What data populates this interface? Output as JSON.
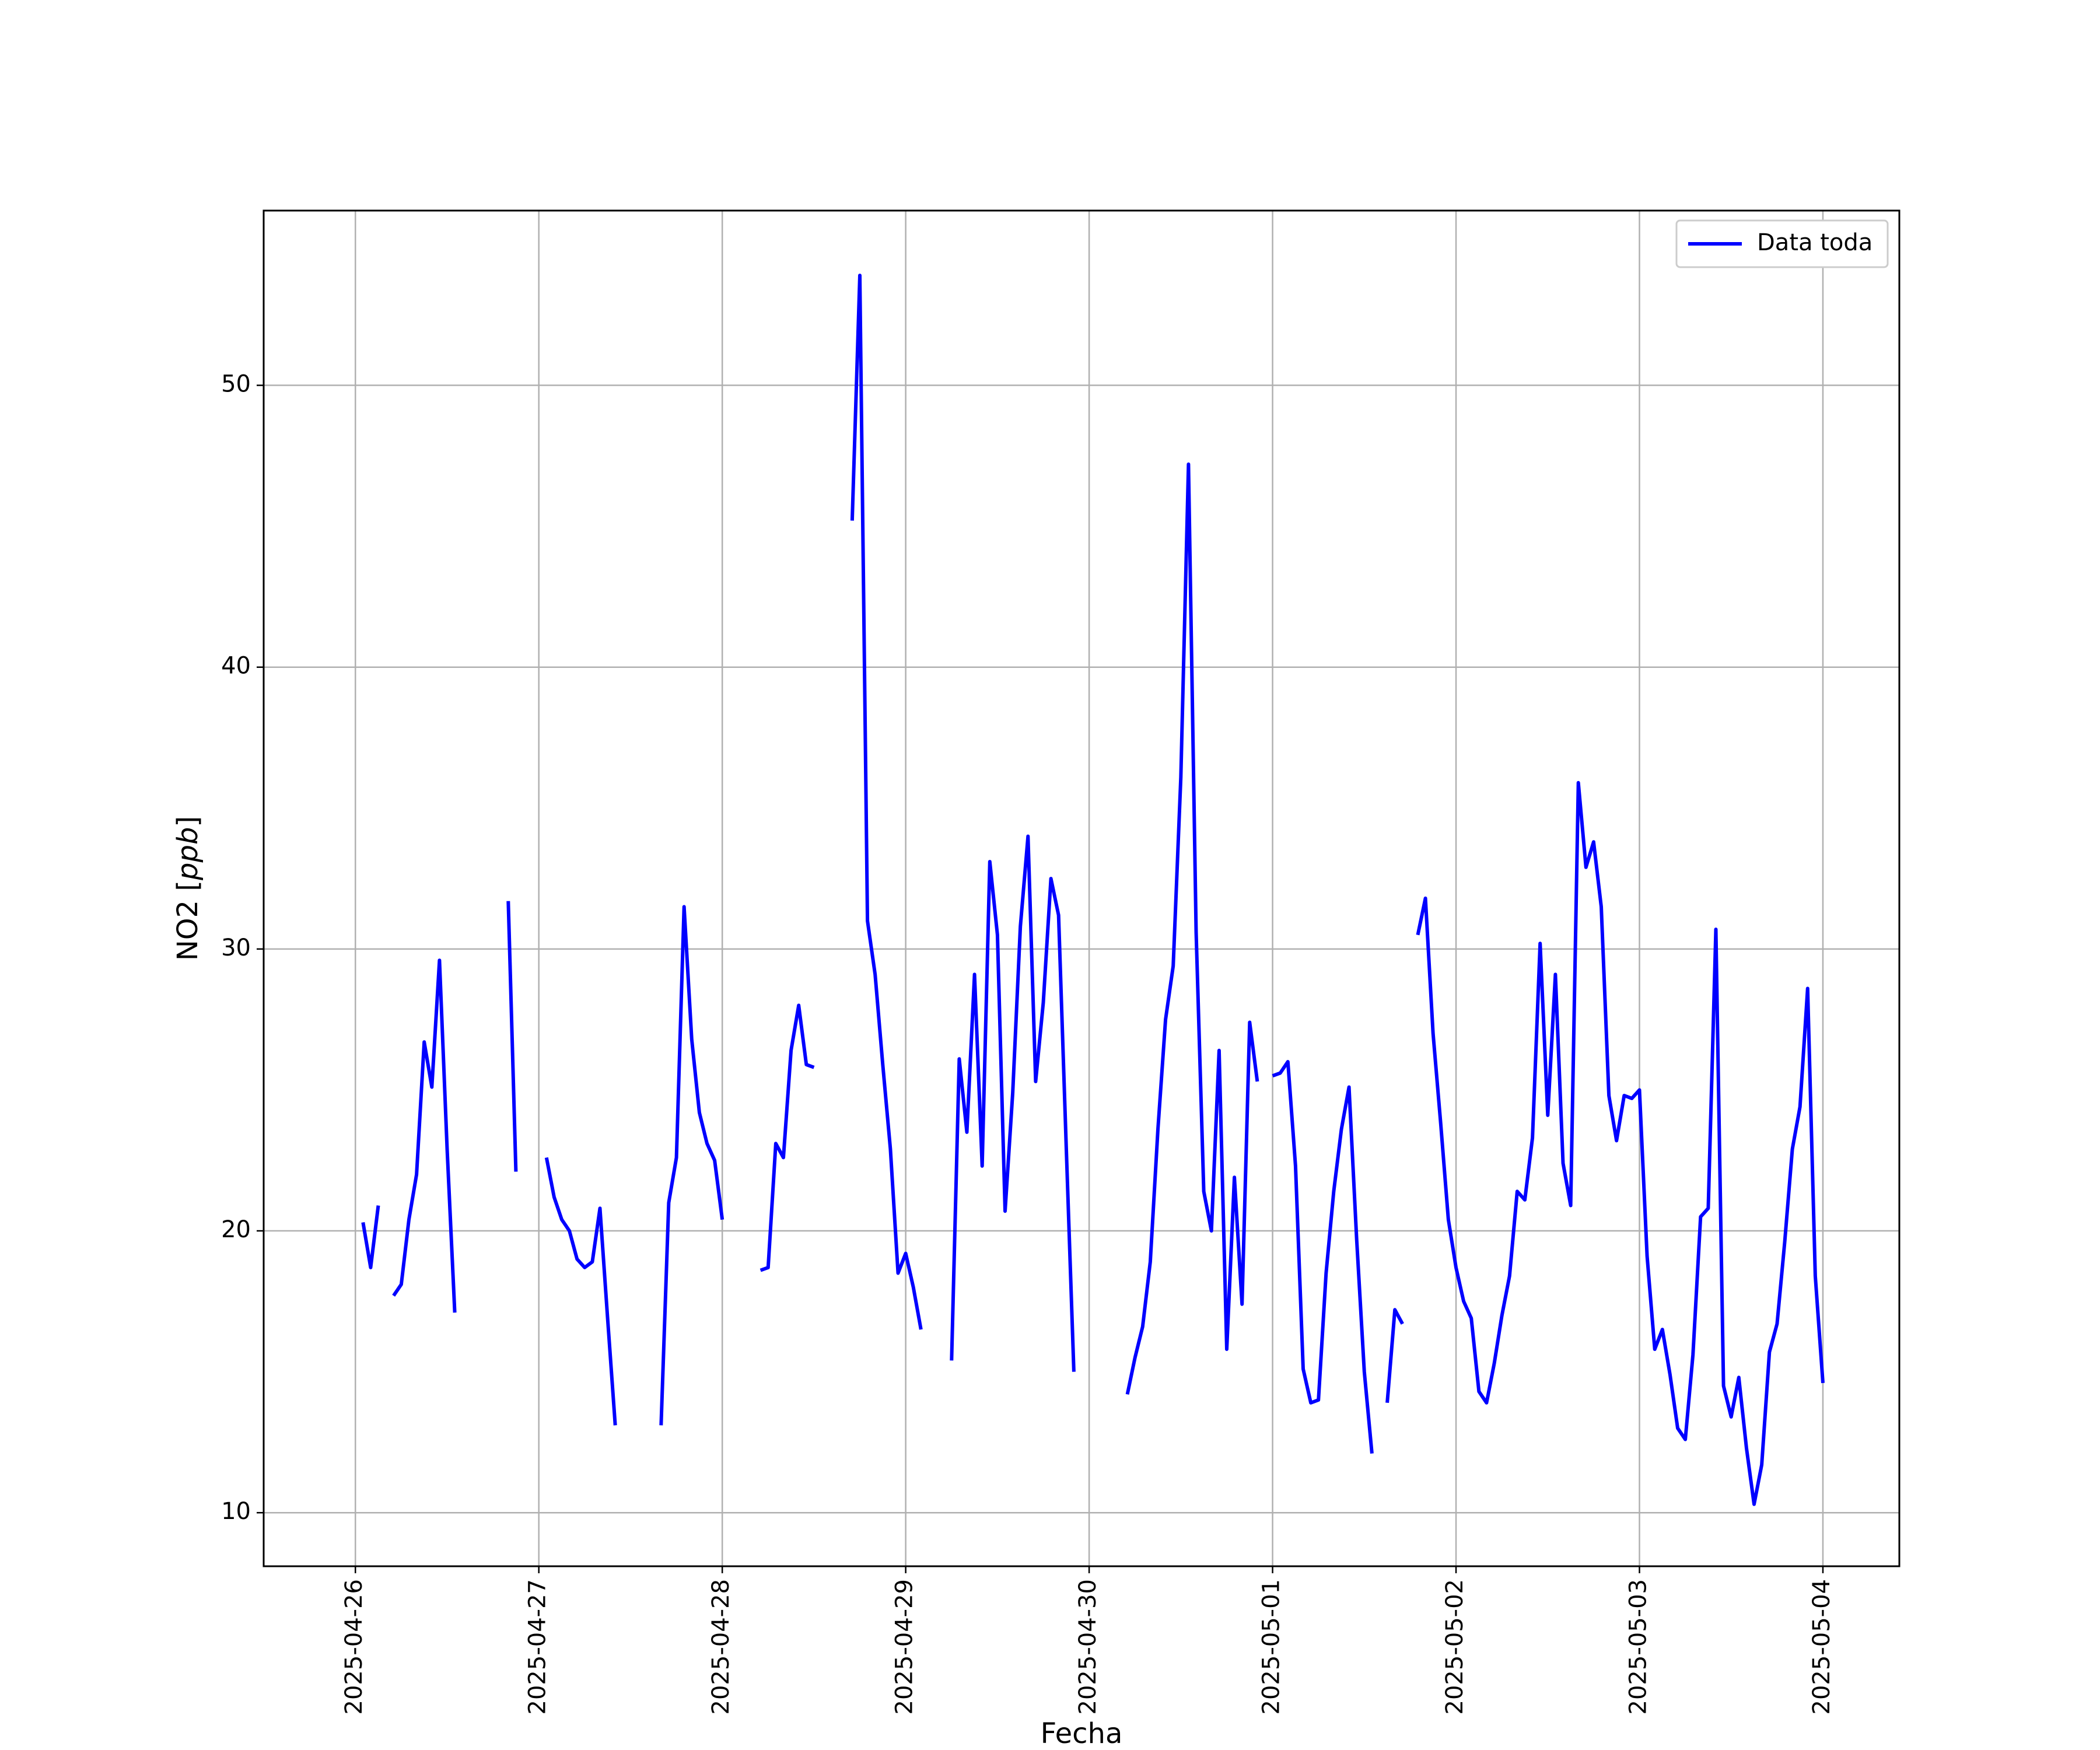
{
  "chart_data": {
    "type": "line",
    "title": "",
    "xlabel": "Fecha",
    "ylabel": "NO2 [ppb]",
    "ylabel_parts": {
      "base": "NO2 [",
      "unit": "ppb",
      "close": "]"
    },
    "xlim": [
      "2025-04-25 12:00",
      "2025-05-04 10:00"
    ],
    "ylim": [
      8.1,
      56.2
    ],
    "x_ticks": [
      "2025-04-26",
      "2025-04-27",
      "2025-04-28",
      "2025-04-29",
      "2025-04-30",
      "2025-05-01",
      "2025-05-02",
      "2025-05-03",
      "2025-05-04"
    ],
    "y_ticks": [
      10,
      20,
      30,
      40,
      50
    ],
    "grid": true,
    "legend": {
      "placement": "top-right",
      "entries": [
        "Data toda"
      ]
    },
    "series": [
      {
        "name": "Data toda",
        "color": "#0000ff",
        "segments": [
          [
            [
              "2025-04-26 01:00",
              20.3
            ],
            [
              "2025-04-26 02:00",
              18.7
            ],
            [
              "2025-04-26 03:00",
              20.9
            ]
          ],
          [
            [
              "2025-04-26 05:00",
              17.7
            ],
            [
              "2025-04-26 06:00",
              18.1
            ],
            [
              "2025-04-26 07:00",
              20.4
            ],
            [
              "2025-04-26 08:00",
              22.0
            ],
            [
              "2025-04-26 09:00",
              26.7
            ],
            [
              "2025-04-26 10:00",
              25.1
            ],
            [
              "2025-04-26 11:00",
              29.6
            ],
            [
              "2025-04-26 12:00",
              22.9
            ],
            [
              "2025-04-26 13:00",
              17.1
            ]
          ],
          [
            [
              "2025-04-26 20:00",
              31.7
            ],
            [
              "2025-04-26 21:00",
              22.1
            ]
          ],
          [
            [
              "2025-04-27 01:00",
              22.6
            ],
            [
              "2025-04-27 02:00",
              21.2
            ],
            [
              "2025-04-27 03:00",
              20.4
            ],
            [
              "2025-04-27 04:00",
              20.0
            ],
            [
              "2025-04-27 05:00",
              19.0
            ],
            [
              "2025-04-27 06:00",
              18.7
            ],
            [
              "2025-04-27 07:00",
              18.9
            ],
            [
              "2025-04-27 08:00",
              20.8
            ],
            [
              "2025-04-27 09:00",
              16.9
            ],
            [
              "2025-04-27 10:00",
              13.1
            ]
          ],
          [
            [
              "2025-04-27 16:00",
              13.1
            ],
            [
              "2025-04-27 17:00",
              21.0
            ],
            [
              "2025-04-27 18:00",
              22.6
            ],
            [
              "2025-04-27 19:00",
              31.5
            ],
            [
              "2025-04-27 20:00",
              26.8
            ],
            [
              "2025-04-27 21:00",
              24.2
            ],
            [
              "2025-04-27 22:00",
              23.1
            ],
            [
              "2025-04-27 23:00",
              22.5
            ],
            [
              "2025-04-28 00:00",
              20.4
            ]
          ],
          [
            [
              "2025-04-28 05:00",
              18.6
            ],
            [
              "2025-04-28 06:00",
              18.7
            ],
            [
              "2025-04-28 07:00",
              23.1
            ],
            [
              "2025-04-28 08:00",
              22.6
            ],
            [
              "2025-04-28 09:00",
              26.4
            ],
            [
              "2025-04-28 10:00",
              28.0
            ],
            [
              "2025-04-28 11:00",
              25.9
            ],
            [
              "2025-04-28 12:00",
              25.8
            ]
          ],
          [
            [
              "2025-04-28 17:00",
              45.2
            ],
            [
              "2025-04-28 18:00",
              53.9
            ],
            [
              "2025-04-28 19:00",
              31.0
            ],
            [
              "2025-04-28 20:00",
              29.1
            ],
            [
              "2025-04-28 21:00",
              25.9
            ],
            [
              "2025-04-28 22:00",
              22.9
            ],
            [
              "2025-04-28 23:00",
              18.5
            ],
            [
              "2025-04-29 00:00",
              19.2
            ],
            [
              "2025-04-29 01:00",
              18.0
            ],
            [
              "2025-04-29 02:00",
              16.5
            ]
          ],
          [
            [
              "2025-04-29 06:00",
              15.4
            ],
            [
              "2025-04-29 07:00",
              26.1
            ],
            [
              "2025-04-29 08:00",
              23.5
            ],
            [
              "2025-04-29 09:00",
              29.1
            ],
            [
              "2025-04-29 10:00",
              22.3
            ],
            [
              "2025-04-29 11:00",
              33.1
            ],
            [
              "2025-04-29 12:00",
              30.5
            ],
            [
              "2025-04-29 13:00",
              20.7
            ],
            [
              "2025-04-29 14:00",
              24.9
            ],
            [
              "2025-04-29 15:00",
              30.8
            ],
            [
              "2025-04-29 16:00",
              34.0
            ],
            [
              "2025-04-29 17:00",
              25.3
            ],
            [
              "2025-04-29 18:00",
              28.1
            ],
            [
              "2025-04-29 19:00",
              32.5
            ],
            [
              "2025-04-29 20:00",
              31.2
            ],
            [
              "2025-04-29 21:00",
              23.0
            ],
            [
              "2025-04-29 22:00",
              15.0
            ]
          ],
          [
            [
              "2025-04-30 05:00",
              14.2
            ],
            [
              "2025-04-30 06:00",
              15.5
            ],
            [
              "2025-04-30 07:00",
              16.6
            ],
            [
              "2025-04-30 08:00",
              18.9
            ],
            [
              "2025-04-30 09:00",
              23.6
            ],
            [
              "2025-04-30 10:00",
              27.5
            ],
            [
              "2025-04-30 11:00",
              29.4
            ],
            [
              "2025-04-30 12:00",
              36.1
            ],
            [
              "2025-04-30 13:00",
              47.2
            ],
            [
              "2025-04-30 14:00",
              30.6
            ],
            [
              "2025-04-30 15:00",
              21.4
            ],
            [
              "2025-04-30 16:00",
              20.0
            ],
            [
              "2025-04-30 17:00",
              26.4
            ],
            [
              "2025-04-30 18:00",
              15.8
            ],
            [
              "2025-04-30 19:00",
              21.9
            ],
            [
              "2025-04-30 20:00",
              17.4
            ],
            [
              "2025-04-30 21:00",
              27.4
            ],
            [
              "2025-04-30 22:00",
              25.3
            ]
          ],
          [
            [
              "2025-05-01 00:00",
              25.5
            ],
            [
              "2025-05-01 01:00",
              25.6
            ],
            [
              "2025-05-01 02:00",
              26.0
            ],
            [
              "2025-05-01 03:00",
              22.3
            ],
            [
              "2025-05-01 04:00",
              15.1
            ],
            [
              "2025-05-01 05:00",
              13.9
            ],
            [
              "2025-05-01 06:00",
              14.0
            ],
            [
              "2025-05-01 07:00",
              18.5
            ],
            [
              "2025-05-01 08:00",
              21.4
            ],
            [
              "2025-05-01 09:00",
              23.6
            ],
            [
              "2025-05-01 10:00",
              25.1
            ],
            [
              "2025-05-01 11:00",
              19.7
            ],
            [
              "2025-05-01 12:00",
              15.0
            ],
            [
              "2025-05-01 13:00",
              12.1
            ]
          ],
          [
            [
              "2025-05-01 15:00",
              13.9
            ],
            [
              "2025-05-01 16:00",
              17.2
            ],
            [
              "2025-05-01 17:00",
              16.7
            ]
          ],
          [
            [
              "2025-05-01 19:00",
              30.5
            ],
            [
              "2025-05-01 20:00",
              31.8
            ],
            [
              "2025-05-01 21:00",
              27.0
            ],
            [
              "2025-05-01 22:00",
              23.8
            ],
            [
              "2025-05-01 23:00",
              20.4
            ],
            [
              "2025-05-02 00:00",
              18.7
            ],
            [
              "2025-05-02 01:00",
              17.5
            ],
            [
              "2025-05-02 02:00",
              16.9
            ],
            [
              "2025-05-02 03:00",
              14.3
            ],
            [
              "2025-05-02 04:00",
              13.9
            ],
            [
              "2025-05-02 05:00",
              15.3
            ],
            [
              "2025-05-02 06:00",
              17.0
            ],
            [
              "2025-05-02 07:00",
              18.4
            ],
            [
              "2025-05-02 08:00",
              21.4
            ],
            [
              "2025-05-02 09:00",
              21.1
            ],
            [
              "2025-05-02 10:00",
              23.3
            ],
            [
              "2025-05-02 11:00",
              30.2
            ],
            [
              "2025-05-02 12:00",
              24.1
            ],
            [
              "2025-05-02 13:00",
              29.1
            ],
            [
              "2025-05-02 14:00",
              22.4
            ],
            [
              "2025-05-02 15:00",
              20.9
            ],
            [
              "2025-05-02 16:00",
              35.9
            ],
            [
              "2025-05-02 17:00",
              32.9
            ],
            [
              "2025-05-02 18:00",
              33.8
            ],
            [
              "2025-05-02 19:00",
              31.5
            ],
            [
              "2025-05-02 20:00",
              24.8
            ],
            [
              "2025-05-02 21:00",
              23.2
            ],
            [
              "2025-05-02 22:00",
              24.8
            ],
            [
              "2025-05-02 23:00",
              24.7
            ],
            [
              "2025-05-03 00:00",
              25.0
            ],
            [
              "2025-05-03 01:00",
              19.1
            ],
            [
              "2025-05-03 02:00",
              15.8
            ],
            [
              "2025-05-03 03:00",
              16.5
            ],
            [
              "2025-05-03 04:00",
              14.9
            ],
            [
              "2025-05-03 05:00",
              13.0
            ],
            [
              "2025-05-03 06:00",
              12.6
            ],
            [
              "2025-05-03 07:00",
              15.6
            ],
            [
              "2025-05-03 08:00",
              20.5
            ],
            [
              "2025-05-03 09:00",
              20.8
            ],
            [
              "2025-05-03 10:00",
              30.7
            ],
            [
              "2025-05-03 11:00",
              14.5
            ],
            [
              "2025-05-03 12:00",
              13.4
            ],
            [
              "2025-05-03 13:00",
              14.8
            ],
            [
              "2025-05-03 14:00",
              12.3
            ],
            [
              "2025-05-03 15:00",
              10.3
            ],
            [
              "2025-05-03 16:00",
              11.7
            ],
            [
              "2025-05-03 17:00",
              15.7
            ],
            [
              "2025-05-03 18:00",
              16.7
            ],
            [
              "2025-05-03 19:00",
              19.6
            ],
            [
              "2025-05-03 20:00",
              22.9
            ],
            [
              "2025-05-03 21:00",
              24.4
            ],
            [
              "2025-05-03 22:00",
              28.6
            ],
            [
              "2025-05-03 23:00",
              18.4
            ],
            [
              "2025-05-04 00:00",
              14.6
            ]
          ]
        ]
      }
    ]
  }
}
